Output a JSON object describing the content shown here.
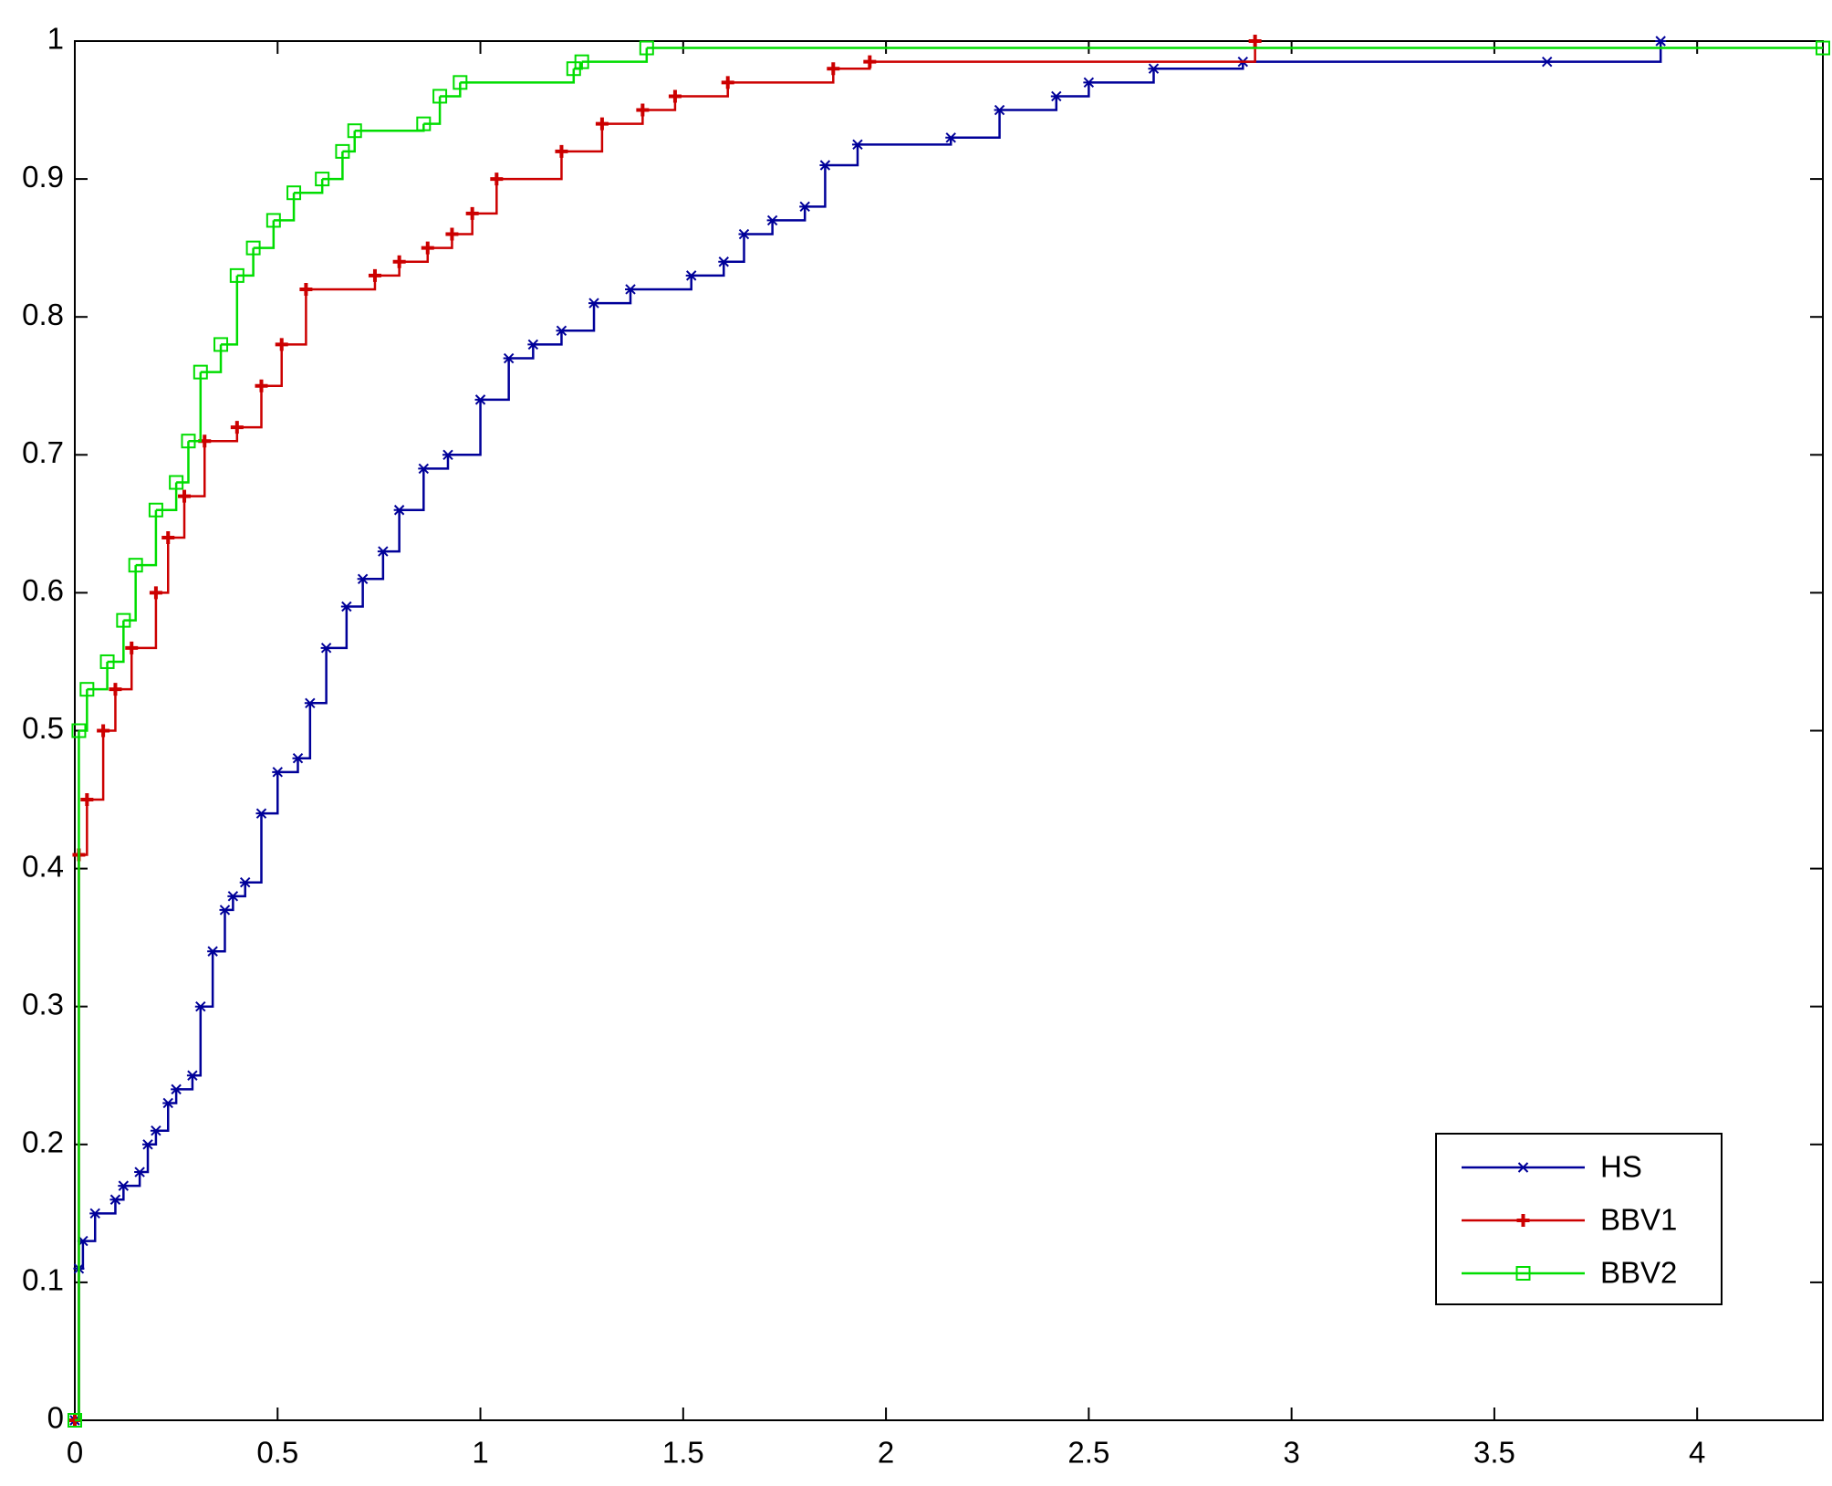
{
  "chart_data": {
    "type": "line",
    "step": true,
    "xlim": [
      0,
      4.31
    ],
    "ylim": [
      0,
      1
    ],
    "xticks": [
      0,
      0.5,
      1,
      1.5,
      2,
      2.5,
      3,
      3.5,
      4
    ],
    "yticks": [
      0,
      0.1,
      0.2,
      0.3,
      0.4,
      0.5,
      0.6,
      0.7,
      0.8,
      0.9,
      1
    ],
    "grid": false,
    "legend": "lower right",
    "series": [
      {
        "name": "HS",
        "color": "#000099",
        "marker": "x",
        "x": [
          0,
          0.01,
          0.02,
          0.05,
          0.1,
          0.12,
          0.16,
          0.18,
          0.2,
          0.23,
          0.25,
          0.29,
          0.31,
          0.34,
          0.37,
          0.39,
          0.42,
          0.46,
          0.5,
          0.55,
          0.58,
          0.62,
          0.67,
          0.71,
          0.76,
          0.8,
          0.86,
          0.92,
          1.0,
          1.07,
          1.13,
          1.2,
          1.28,
          1.37,
          1.52,
          1.6,
          1.65,
          1.72,
          1.8,
          1.85,
          1.93,
          2.16,
          2.28,
          2.42,
          2.5,
          2.66,
          2.88,
          3.63,
          3.91
        ],
        "values": [
          0,
          0.11,
          0.13,
          0.15,
          0.16,
          0.17,
          0.18,
          0.2,
          0.21,
          0.23,
          0.24,
          0.25,
          0.3,
          0.34,
          0.37,
          0.38,
          0.39,
          0.44,
          0.47,
          0.48,
          0.52,
          0.56,
          0.59,
          0.61,
          0.63,
          0.66,
          0.69,
          0.7,
          0.74,
          0.77,
          0.78,
          0.79,
          0.81,
          0.82,
          0.83,
          0.84,
          0.86,
          0.87,
          0.88,
          0.91,
          0.925,
          0.93,
          0.95,
          0.96,
          0.97,
          0.98,
          0.985,
          0.985,
          1.0
        ]
      },
      {
        "name": "BBV1",
        "color": "#cc0000",
        "marker": "+",
        "x": [
          0,
          0.01,
          0.03,
          0.07,
          0.1,
          0.14,
          0.2,
          0.23,
          0.27,
          0.32,
          0.4,
          0.46,
          0.51,
          0.57,
          0.74,
          0.8,
          0.87,
          0.93,
          0.98,
          1.04,
          1.2,
          1.3,
          1.4,
          1.48,
          1.61,
          1.87,
          1.96,
          2.91
        ],
        "values": [
          0,
          0.41,
          0.45,
          0.5,
          0.53,
          0.56,
          0.6,
          0.64,
          0.67,
          0.71,
          0.72,
          0.75,
          0.78,
          0.82,
          0.83,
          0.84,
          0.85,
          0.86,
          0.875,
          0.9,
          0.92,
          0.94,
          0.95,
          0.96,
          0.97,
          0.98,
          0.985,
          1.0
        ]
      },
      {
        "name": "BBV2",
        "color": "#00dd00",
        "marker": "s",
        "x": [
          0,
          0.01,
          0.03,
          0.08,
          0.12,
          0.15,
          0.2,
          0.25,
          0.28,
          0.31,
          0.36,
          0.4,
          0.44,
          0.49,
          0.54,
          0.61,
          0.66,
          0.69,
          0.86,
          0.9,
          0.95,
          1.23,
          1.25,
          1.41,
          4.31
        ],
        "values": [
          0,
          0.5,
          0.53,
          0.55,
          0.58,
          0.62,
          0.66,
          0.68,
          0.71,
          0.76,
          0.78,
          0.83,
          0.85,
          0.87,
          0.89,
          0.9,
          0.92,
          0.935,
          0.94,
          0.96,
          0.97,
          0.98,
          0.985,
          0.995,
          0.995
        ]
      }
    ]
  }
}
